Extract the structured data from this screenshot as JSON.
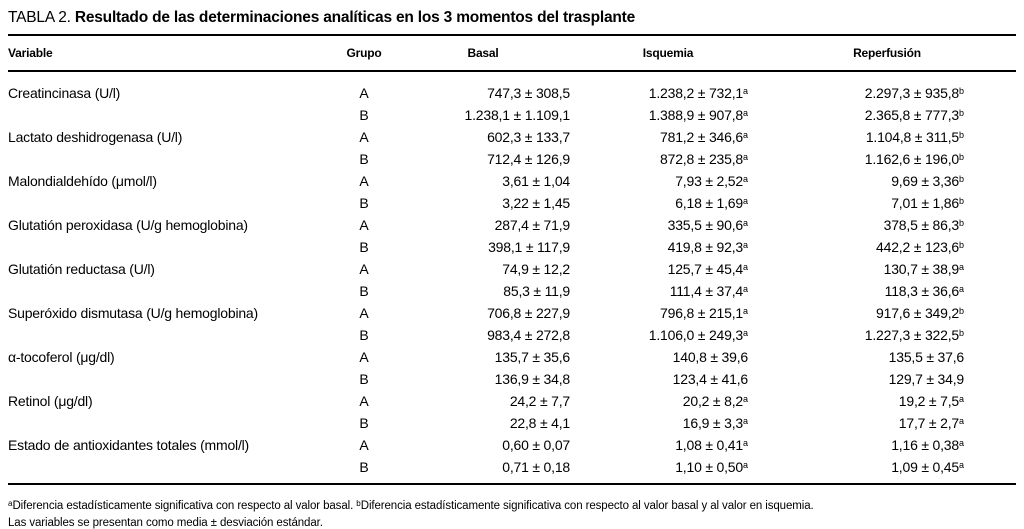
{
  "title": {
    "prefix": "TABLA 2.",
    "text": "Resultado de las determinaciones analíticas en los 3 momentos del trasplante"
  },
  "table": {
    "columns": [
      "Variable",
      "Grupo",
      "Basal",
      "Isquemia",
      "Reperfusión"
    ],
    "rows": [
      {
        "variable": "Creatincinasa (U/l)",
        "grupo": "A",
        "basal": {
          "v": "747,3 ± 308,5",
          "s": ""
        },
        "isquemia": {
          "v": "1.238,2 ± 732,1",
          "s": "a"
        },
        "reperfusion": {
          "v": "2.297,3 ± 935,8",
          "s": "b"
        }
      },
      {
        "variable": "",
        "grupo": "B",
        "basal": {
          "v": "1.238,1 ± 1.109,1",
          "s": ""
        },
        "isquemia": {
          "v": "1.388,9 ± 907,8",
          "s": "a"
        },
        "reperfusion": {
          "v": "2.365,8 ± 777,3",
          "s": "b"
        }
      },
      {
        "variable": "Lactato deshidrogenasa (U/l)",
        "grupo": "A",
        "basal": {
          "v": "602,3 ± 133,7",
          "s": ""
        },
        "isquemia": {
          "v": "781,2 ± 346,6",
          "s": "a"
        },
        "reperfusion": {
          "v": "1.104,8 ± 311,5",
          "s": "b"
        }
      },
      {
        "variable": "",
        "grupo": "B",
        "basal": {
          "v": "712,4 ± 126,9",
          "s": ""
        },
        "isquemia": {
          "v": "872,8 ± 235,8",
          "s": "a"
        },
        "reperfusion": {
          "v": "1.162,6 ± 196,0",
          "s": "b"
        }
      },
      {
        "variable": "Malondialdehído (μmol/l)",
        "grupo": "A",
        "basal": {
          "v": "3,61 ± 1,04",
          "s": ""
        },
        "isquemia": {
          "v": "7,93 ± 2,52",
          "s": "a"
        },
        "reperfusion": {
          "v": "9,69 ± 3,36",
          "s": "b"
        }
      },
      {
        "variable": "",
        "grupo": "B",
        "basal": {
          "v": "3,22 ± 1,45",
          "s": ""
        },
        "isquemia": {
          "v": "6,18 ± 1,69",
          "s": "a"
        },
        "reperfusion": {
          "v": "7,01 ± 1,86",
          "s": "b"
        }
      },
      {
        "variable": "Glutatión peroxidasa (U/g hemoglobina)",
        "grupo": "A",
        "basal": {
          "v": "287,4 ± 71,9",
          "s": ""
        },
        "isquemia": {
          "v": "335,5 ± 90,6",
          "s": "a"
        },
        "reperfusion": {
          "v": "378,5 ± 86,3",
          "s": "b"
        }
      },
      {
        "variable": "",
        "grupo": "B",
        "basal": {
          "v": "398,1 ± 117,9",
          "s": ""
        },
        "isquemia": {
          "v": "419,8 ± 92,3",
          "s": "a"
        },
        "reperfusion": {
          "v": "442,2 ± 123,6",
          "s": "b"
        }
      },
      {
        "variable": "Glutatión reductasa (U/l)",
        "grupo": "A",
        "basal": {
          "v": "74,9 ± 12,2",
          "s": ""
        },
        "isquemia": {
          "v": "125,7 ± 45,4",
          "s": "a"
        },
        "reperfusion": {
          "v": "130,7 ± 38,9",
          "s": "a"
        }
      },
      {
        "variable": "",
        "grupo": "B",
        "basal": {
          "v": "85,3 ± 11,9",
          "s": ""
        },
        "isquemia": {
          "v": "111,4 ± 37,4",
          "s": "a"
        },
        "reperfusion": {
          "v": "118,3 ± 36,6",
          "s": "a"
        }
      },
      {
        "variable": "Superóxido dismutasa (U/g hemoglobina)",
        "grupo": "A",
        "basal": {
          "v": "706,8 ± 227,9",
          "s": ""
        },
        "isquemia": {
          "v": "796,8 ± 215,1",
          "s": "a"
        },
        "reperfusion": {
          "v": "917,6 ± 349,2",
          "s": "b"
        }
      },
      {
        "variable": "",
        "grupo": "B",
        "basal": {
          "v": "983,4 ± 272,8",
          "s": ""
        },
        "isquemia": {
          "v": "1.106,0 ± 249,3",
          "s": "a"
        },
        "reperfusion": {
          "v": "1.227,3 ± 322,5",
          "s": "b"
        }
      },
      {
        "variable": "α-tocoferol (μg/dl)",
        "grupo": "A",
        "basal": {
          "v": "135,7 ± 35,6",
          "s": ""
        },
        "isquemia": {
          "v": "140,8 ± 39,6",
          "s": ""
        },
        "reperfusion": {
          "v": "135,5 ± 37,6",
          "s": ""
        }
      },
      {
        "variable": "",
        "grupo": "B",
        "basal": {
          "v": "136,9 ± 34,8",
          "s": ""
        },
        "isquemia": {
          "v": "123,4 ± 41,6",
          "s": ""
        },
        "reperfusion": {
          "v": "129,7 ± 34,9",
          "s": ""
        }
      },
      {
        "variable": "Retinol (μg/dl)",
        "grupo": "A",
        "basal": {
          "v": "24,2 ± 7,7",
          "s": ""
        },
        "isquemia": {
          "v": "20,2 ± 8,2",
          "s": "a"
        },
        "reperfusion": {
          "v": "19,2 ± 7,5",
          "s": "a"
        }
      },
      {
        "variable": "",
        "grupo": "B",
        "basal": {
          "v": "22,8 ± 4,1",
          "s": ""
        },
        "isquemia": {
          "v": "16,9 ± 3,3",
          "s": "a"
        },
        "reperfusion": {
          "v": "17,7 ± 2,7",
          "s": "a"
        }
      },
      {
        "variable": "Estado de antioxidantes totales (mmol/l)",
        "grupo": "A",
        "basal": {
          "v": "0,60 ± 0,07",
          "s": ""
        },
        "isquemia": {
          "v": "1,08 ± 0,41",
          "s": "a"
        },
        "reperfusion": {
          "v": "1,16 ± 0,38",
          "s": "a"
        }
      },
      {
        "variable": "",
        "grupo": "B",
        "basal": {
          "v": "0,71 ± 0,18",
          "s": ""
        },
        "isquemia": {
          "v": "1,10 ± 0,50",
          "s": "a"
        },
        "reperfusion": {
          "v": "1,09 ± 0,45",
          "s": "a"
        }
      }
    ]
  },
  "footnote": {
    "sup_a": "a",
    "text_a": "Diferencia estadísticamente significativa con respecto al valor basal. ",
    "sup_b": "b",
    "text_b": "Diferencia estadísticamente significativa con respecto al valor basal y al valor en isquemia.",
    "line2": "Las variables se presentan como media ± desviación estándar."
  }
}
